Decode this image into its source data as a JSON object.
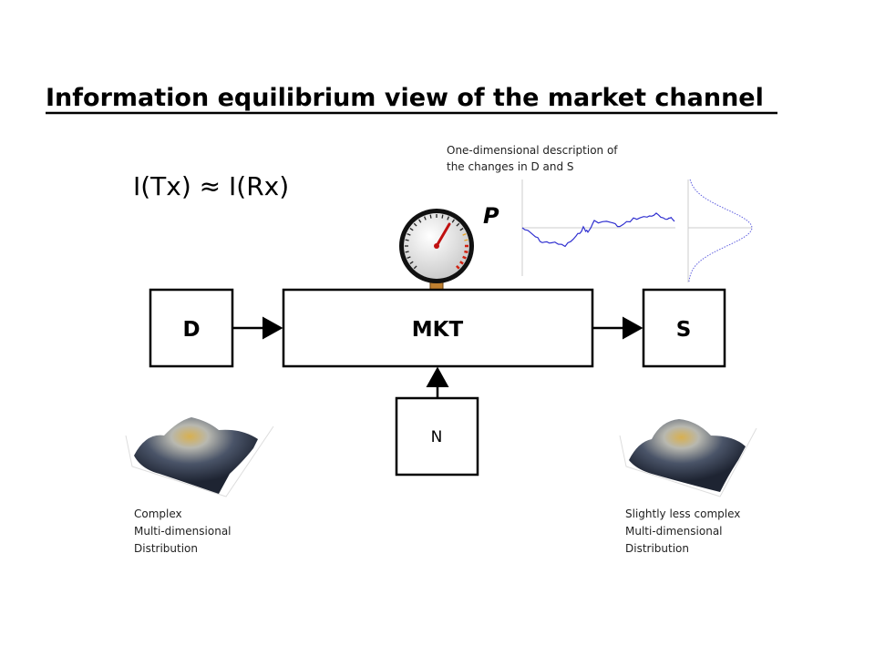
{
  "title": "Information equilibrium view of the market channel",
  "equation": "I(Tx) ≈ I(Rx)",
  "price_label": "P",
  "one_dim_caption": [
    "One-dimensional description of",
    "the changes in D and S"
  ],
  "boxes": {
    "demand": "D",
    "market": "MKT",
    "supply": "S",
    "noise": "N"
  },
  "left_caption": [
    "Complex",
    "Multi-dimensional",
    "Distribution"
  ],
  "right_caption": [
    "Slightly less complex",
    "Multi-dimensional",
    "Distribution"
  ],
  "colors": {
    "price_line": "#3030d0",
    "gauge_needle": "#c01010",
    "surface_peak": "#c8a040",
    "surface_base": "#2a3040"
  }
}
